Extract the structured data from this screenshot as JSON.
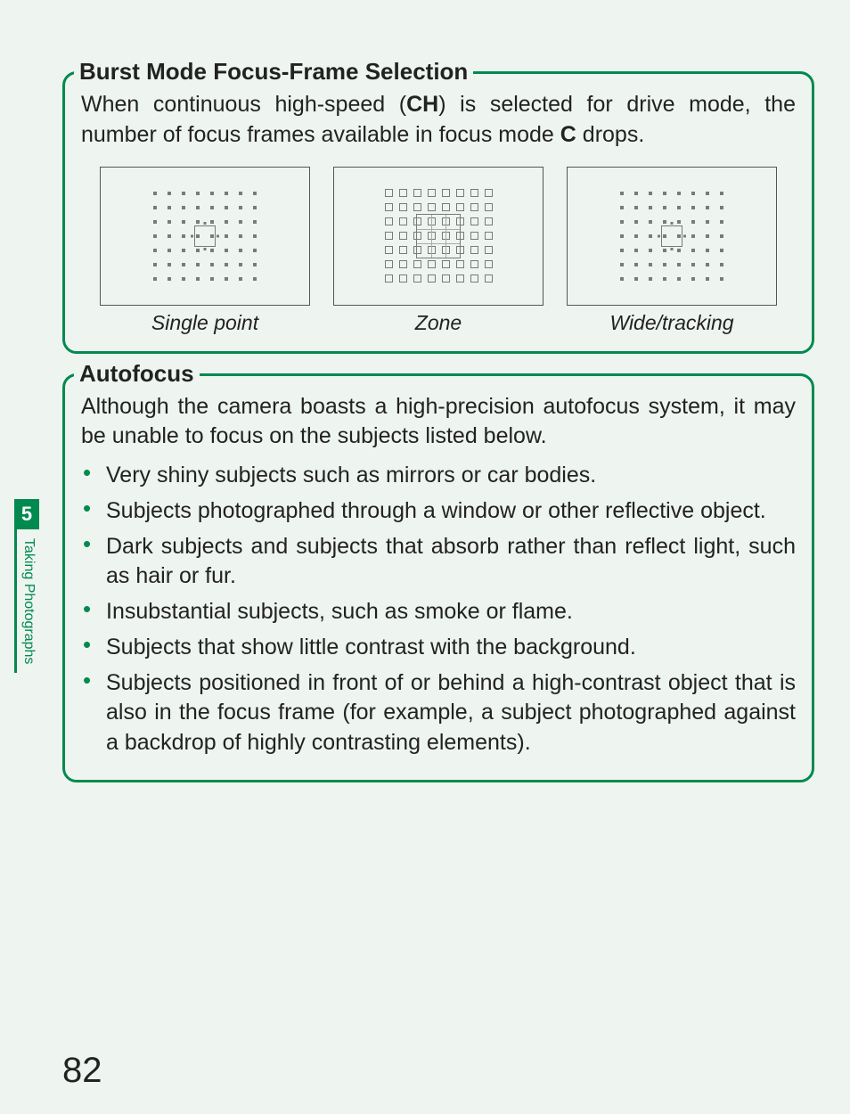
{
  "page": {
    "number": "82"
  },
  "sidebar": {
    "chapter_number": "5",
    "chapter_title": "Taking Photographs"
  },
  "section1": {
    "title": "Burst Mode Focus-Frame Selection",
    "body_pre": "When continuous high-speed (",
    "body_ch": "CH",
    "body_mid": ") is selected for drive mode, the number of focus frames available in focus mode ",
    "body_c": "C",
    "body_post": " drops.",
    "diagrams": {
      "grid_cols": 8,
      "grid_rows": 7,
      "border_color": "#555555",
      "square_color": "#7a7a7a",
      "bg_color": "#eef4f0",
      "labels": [
        "Single point",
        "Zone",
        "Wide/tracking"
      ],
      "types": [
        "single_point",
        "zone",
        "wide_tracking"
      ],
      "single_point": {
        "dot_style": "small_filled",
        "selection": "center_1x1_with_ticks"
      },
      "zone": {
        "dot_style": "open_square_all",
        "selection": "center_3x3_grid"
      },
      "wide_tracking": {
        "dot_style": "small_filled",
        "selection": "center_1x1_with_ticks"
      }
    }
  },
  "section2": {
    "title": "Autofocus",
    "intro": "Although the camera boasts a high-precision autofocus system, it may be unable to focus on the subjects listed below.",
    "bullets": [
      "Very shiny subjects such as mirrors or car bodies.",
      "Subjects photographed through a window or other reflective object.",
      "Dark subjects and subjects that absorb rather than reflect light, such as hair or fur.",
      "Insubstantial subjects, such as smoke or flame.",
      "Subjects that show little contrast with the background.",
      "Subjects positioned in front of or behind a high-contrast object that is also in the focus frame (for example, a subject photographed against a backdrop of highly contrasting elements)."
    ]
  },
  "colors": {
    "accent": "#018a4f",
    "page_bg": "#eef4f0",
    "text": "#222222"
  }
}
